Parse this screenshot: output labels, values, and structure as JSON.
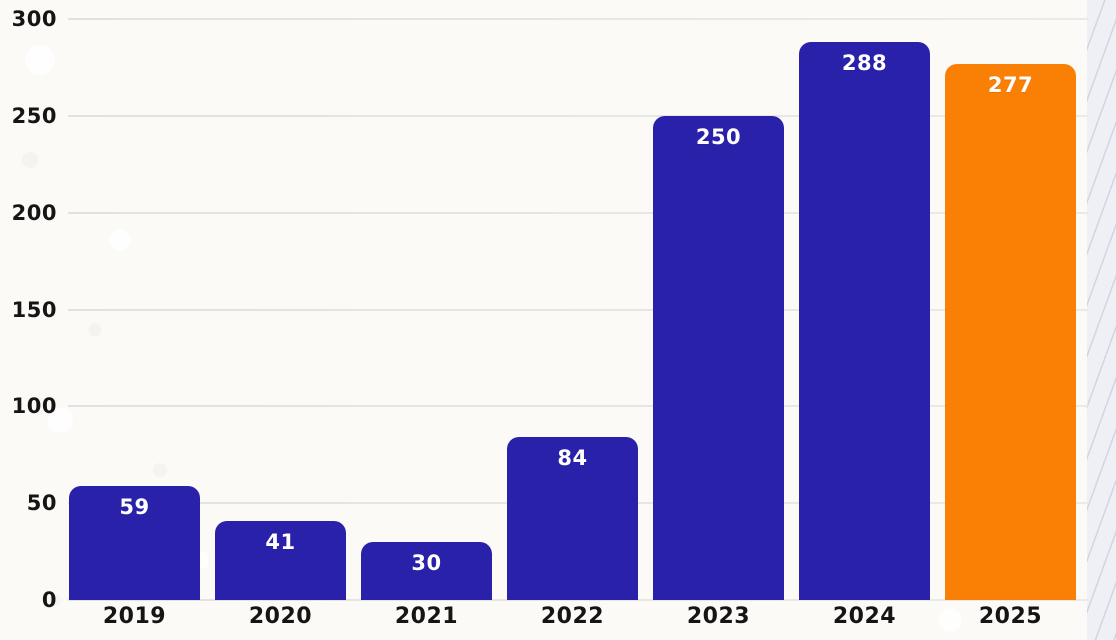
{
  "chart_data": {
    "type": "bar",
    "title": "",
    "xlabel": "",
    "ylabel": "",
    "categories": [
      "2019",
      "2020",
      "2021",
      "2022",
      "2023",
      "2024",
      "2025"
    ],
    "values": [
      59,
      41,
      30,
      84,
      250,
      288,
      277
    ],
    "bar_colors": [
      "#2a21ab",
      "#2a21ab",
      "#2a21ab",
      "#2a21ab",
      "#2a21ab",
      "#2a21ab",
      "#fa8005"
    ],
    "value_labels": [
      "59",
      "41",
      "30",
      "84",
      "250",
      "288",
      "277"
    ],
    "value_label_color": "#ffffff",
    "ylim": [
      0,
      300
    ],
    "yticks": [
      0,
      50,
      100,
      150,
      200,
      250,
      300
    ],
    "ytick_labels": [
      "0",
      "50",
      "100",
      "150",
      "200",
      "250",
      "300"
    ],
    "grid": "horizontal",
    "legend": "none"
  },
  "colors": {
    "bar_primary": "#2a21ab",
    "bar_highlight": "#fa8005",
    "gridline": "#e5e4e1",
    "axis_text": "#161514",
    "background": "#fbfaf7",
    "right_strip_background": "#eef0f5"
  }
}
